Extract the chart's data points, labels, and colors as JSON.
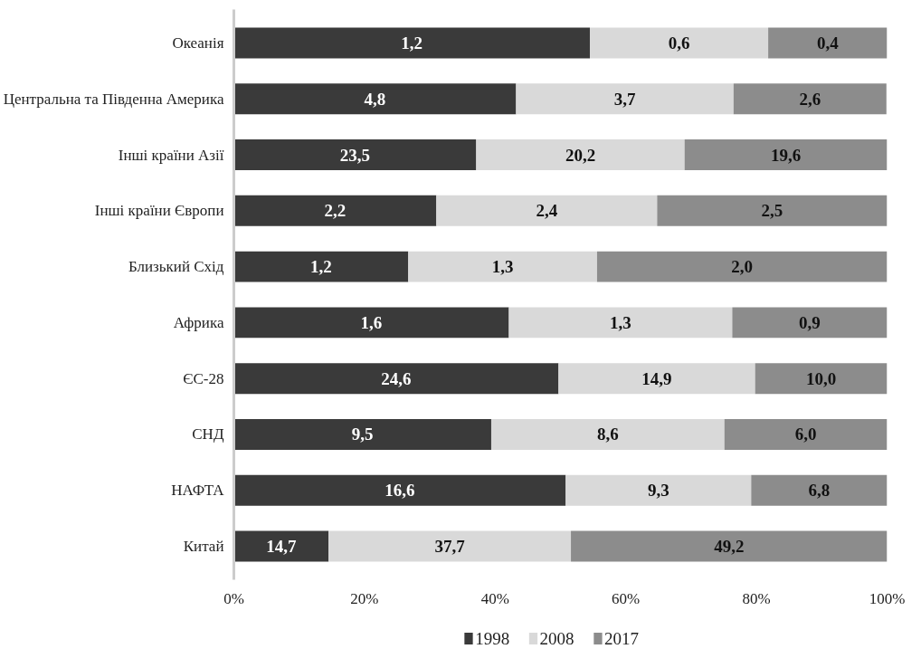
{
  "chart_data": {
    "type": "bar",
    "orientation": "horizontal",
    "stacked": true,
    "categories": [
      "Океанія",
      "Центральна та Південна Америка",
      "Інші країни Азії",
      "Інші країни Європи",
      "Близький Схід",
      "Африка",
      "ЄС-28",
      "СНД",
      "НАФТА",
      "Китай"
    ],
    "series": [
      {
        "name": "1998",
        "color": "#3a3a3a",
        "values": [
          54.5,
          43.2,
          37.1,
          31.0,
          26.7,
          42.1,
          49.7,
          39.4,
          50.8,
          14.5
        ]
      },
      {
        "name": "2008",
        "color": "#d9d9d9",
        "values": [
          27.3,
          33.3,
          31.9,
          33.8,
          28.9,
          34.2,
          30.1,
          35.7,
          28.4,
          37.1
        ]
      },
      {
        "name": "2017",
        "color": "#8c8c8c",
        "values": [
          18.2,
          23.4,
          31.0,
          35.2,
          44.4,
          23.7,
          20.2,
          24.9,
          20.8,
          48.4
        ]
      }
    ],
    "annotations": [
      "1,2",
      "0,6",
      "0,4",
      "4,8",
      "3,7",
      "2,6",
      "23,5",
      "20,2",
      "19,6",
      "2,2",
      "2,4",
      "2,5",
      "1,2",
      "1,3",
      "2,0",
      "1,6",
      "1,3",
      "0,9",
      "24,6",
      "14,9",
      "10,0",
      "9,5",
      "8,6",
      "6,0",
      "16,6",
      "9,3",
      "6,8",
      "14,7",
      "37,7",
      "49,2"
    ],
    "xlim": [
      0,
      100
    ],
    "xticks": [
      {
        "value": 0,
        "label": "0%"
      },
      {
        "value": 20,
        "label": "20%"
      },
      {
        "value": 40,
        "label": "40%"
      },
      {
        "value": 60,
        "label": "60%"
      },
      {
        "value": 80,
        "label": "80%"
      },
      {
        "value": 100,
        "label": "100%"
      }
    ],
    "grid": false,
    "legend": "bottom"
  }
}
